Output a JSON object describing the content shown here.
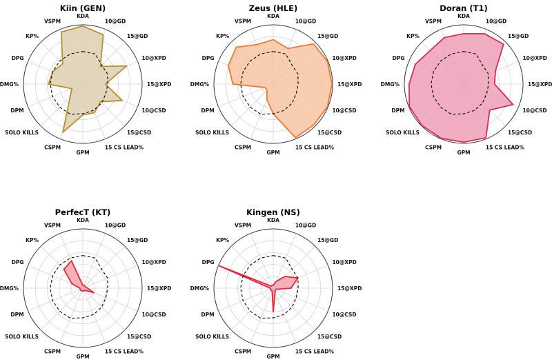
{
  "chart_data": {
    "type": "radar",
    "axes": [
      "KDA",
      "10@GD",
      "15@GD",
      "10@XPD",
      "15@XPD",
      "10@CSD",
      "15@CSD",
      "15 CS LEAD%",
      "GPM",
      "CSPM",
      "SOLO KILLS",
      "DPM",
      "DMG%",
      "DPG",
      "KP%",
      "VSPM"
    ],
    "rlim": [
      0,
      1
    ],
    "grid": true,
    "reference_style": "black dashed",
    "panels": [
      {
        "title": "Kiin (GEN)",
        "color": "#b8902f",
        "fill": "#ddd0b0",
        "values": [
          0.98,
          0.9,
          0.42,
          0.8,
          0.38,
          0.72,
          0.42,
          0.52,
          0.52,
          0.88,
          0.3,
          0.2,
          0.58,
          0.55,
          0.48,
          0.95
        ],
        "reference": [
          0.55,
          0.55,
          0.45,
          0.45,
          0.42,
          0.42,
          0.45,
          0.48,
          0.5,
          0.55,
          0.55,
          0.55,
          0.55,
          0.55,
          0.55,
          0.55
        ]
      },
      {
        "title": "Zeus (HLE)",
        "color": "#ee7a30",
        "fill": "#f8c4a2",
        "values": [
          0.75,
          0.65,
          0.96,
          0.99,
          0.99,
          0.99,
          0.97,
          0.98,
          0.5,
          0.28,
          0.15,
          0.15,
          0.68,
          0.82,
          0.88,
          0.72
        ],
        "reference": [
          0.55,
          0.55,
          0.45,
          0.45,
          0.42,
          0.42,
          0.45,
          0.48,
          0.5,
          0.55,
          0.55,
          0.55,
          0.55,
          0.55,
          0.55,
          0.55
        ]
      },
      {
        "title": "Doran (T1)",
        "color": "#d42d57",
        "fill": "#efa0b8",
        "values": [
          0.85,
          0.92,
          0.95,
          0.58,
          0.52,
          0.9,
          0.62,
          0.98,
          0.98,
          0.99,
          0.99,
          0.99,
          0.92,
          0.88,
          0.8,
          0.85
        ],
        "reference": [
          0.55,
          0.55,
          0.45,
          0.45,
          0.42,
          0.42,
          0.45,
          0.48,
          0.5,
          0.55,
          0.55,
          0.55,
          0.55,
          0.55,
          0.55,
          0.55
        ]
      },
      {
        "title": "PerfecT (KT)",
        "color": "#e8253a",
        "fill": "#f0a4ad",
        "values": [
          0.05,
          0.05,
          0.05,
          0.05,
          0.08,
          0.2,
          0.05,
          0.05,
          0.05,
          0.05,
          0.05,
          0.05,
          0.05,
          0.2,
          0.45,
          0.5
        ],
        "reference": [
          0.55,
          0.55,
          0.45,
          0.45,
          0.42,
          0.42,
          0.45,
          0.48,
          0.5,
          0.55,
          0.55,
          0.55,
          0.55,
          0.55,
          0.55,
          0.55
        ]
      },
      {
        "title": "Kingen (NS)",
        "color": "#e8253a",
        "fill": "#f0a4ad",
        "values": [
          0.05,
          0.12,
          0.28,
          0.45,
          0.3,
          0.05,
          0.05,
          0.08,
          0.4,
          0.05,
          0.05,
          0.05,
          0.05,
          0.98,
          0.05,
          0.05
        ],
        "reference": [
          0.55,
          0.55,
          0.45,
          0.45,
          0.42,
          0.42,
          0.45,
          0.48,
          0.5,
          0.55,
          0.55,
          0.55,
          0.55,
          0.55,
          0.55,
          0.55
        ]
      }
    ]
  }
}
